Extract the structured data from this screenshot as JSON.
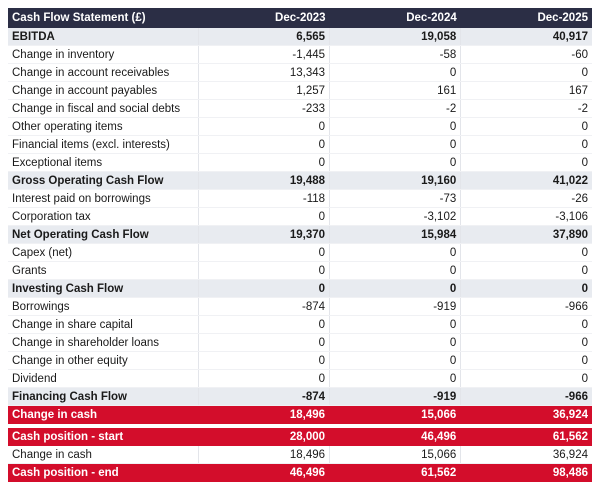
{
  "table": {
    "header": [
      "Cash Flow Statement (£)",
      "Dec-2023",
      "Dec-2024",
      "Dec-2025"
    ],
    "rows": [
      [
        "EBITDA",
        "6,565",
        "19,058",
        "40,917"
      ],
      [
        "Change in inventory",
        "-1,445",
        "-58",
        "-60"
      ],
      [
        "Change in account receivables",
        "13,343",
        "0",
        "0"
      ],
      [
        "Change in account payables",
        "1,257",
        "161",
        "167"
      ],
      [
        "Change in fiscal and social debts",
        "-233",
        "-2",
        "-2"
      ],
      [
        "Other operating items",
        "0",
        "0",
        "0"
      ],
      [
        "Financial items (excl. interests)",
        "0",
        "0",
        "0"
      ],
      [
        "Exceptional items",
        "0",
        "0",
        "0"
      ],
      [
        "Gross Operating Cash Flow",
        "19,488",
        "19,160",
        "41,022"
      ],
      [
        "Interest paid on borrowings",
        "-118",
        "-73",
        "-26"
      ],
      [
        "Corporation tax",
        "0",
        "-3,102",
        "-3,106"
      ],
      [
        "Net Operating Cash Flow",
        "19,370",
        "15,984",
        "37,890"
      ],
      [
        "Capex (net)",
        "0",
        "0",
        "0"
      ],
      [
        "Grants",
        "0",
        "0",
        "0"
      ],
      [
        "Investing Cash Flow",
        "0",
        "0",
        "0"
      ],
      [
        "Borrowings",
        "-874",
        "-919",
        "-966"
      ],
      [
        "Change in share capital",
        "0",
        "0",
        "0"
      ],
      [
        "Change in shareholder loans",
        "0",
        "0",
        "0"
      ],
      [
        "Change in other equity",
        "0",
        "0",
        "0"
      ],
      [
        "Dividend",
        "0",
        "0",
        "0"
      ],
      [
        "Financing Cash Flow",
        "-874",
        "-919",
        "-966"
      ],
      [
        "Change in cash",
        "18,496",
        "15,066",
        "36,924"
      ],
      [
        "Cash position - start",
        "28,000",
        "46,496",
        "61,562"
      ],
      [
        "Change in cash",
        "18,496",
        "15,066",
        "36,924"
      ],
      [
        "Cash position - end",
        "46,496",
        "61,562",
        "98,486"
      ]
    ]
  }
}
